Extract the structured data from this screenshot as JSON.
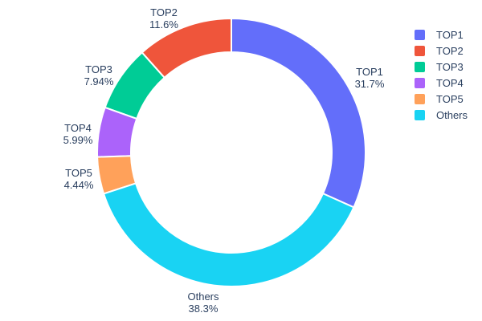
{
  "chart_data": {
    "type": "pie",
    "title": "",
    "hole_ratio": 0.75,
    "legend_position": "right",
    "text_color": "#2a3f5f",
    "slices": [
      {
        "label": "TOP1",
        "percent": 31.7,
        "percent_label": "31.7%",
        "color": "#636EFA"
      },
      {
        "label": "TOP2",
        "percent": 11.6,
        "percent_label": "11.6%",
        "color": "#EF553B"
      },
      {
        "label": "TOP3",
        "percent": 7.94,
        "percent_label": "7.94%",
        "color": "#00CC96"
      },
      {
        "label": "TOP4",
        "percent": 5.99,
        "percent_label": "5.99%",
        "color": "#AB63FA"
      },
      {
        "label": "TOP5",
        "percent": 4.44,
        "percent_label": "4.44%",
        "color": "#FFA15A"
      },
      {
        "label": "Others",
        "percent": 38.3,
        "percent_label": "38.3%",
        "color": "#19D3F3"
      }
    ]
  }
}
